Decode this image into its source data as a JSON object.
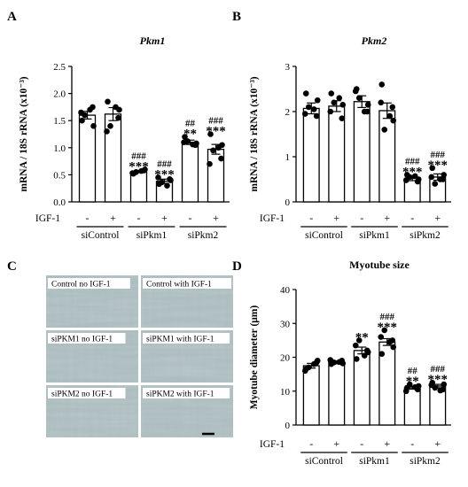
{
  "panels": {
    "A": "A",
    "B": "B",
    "C": "C",
    "D": "D"
  },
  "treatment": {
    "row_label": "IGF-1",
    "minus": "-",
    "plus": "+"
  },
  "micrographs": [
    {
      "label": "Control no IGF-1"
    },
    {
      "label": "Control with IGF-1"
    },
    {
      "label": "siPKM1 no IGF-1"
    },
    {
      "label": "siPKM1 with IGF-1"
    },
    {
      "label": "siPKM2 no IGF-1"
    },
    {
      "label": "siPKM2 with IGF-1"
    }
  ],
  "colors": {
    "bar_fill": "#ffffff",
    "bar_stroke": "#000000",
    "point": "#000000",
    "micrograph_tint": "#aebfc1"
  },
  "chart_data": [
    {
      "id": "pkm1",
      "type": "bar",
      "title": "Pkm1",
      "ylabel": "mRNA / 18S rRNA (x10⁻³)",
      "ylim": [
        0,
        2.5
      ],
      "yticks": [
        "0.0",
        "0.5",
        "1.0",
        "1.5",
        "2.0",
        "2.5"
      ],
      "groups": [
        "siControl",
        "siPkm1",
        "siPkm2"
      ],
      "categories": [
        "siControl -IGF-1",
        "siControl +IGF-1",
        "siPkm1 -IGF-1",
        "siPkm1 +IGF-1",
        "siPkm2 -IGF-1",
        "siPkm2 +IGF-1"
      ],
      "igf1": [
        "-",
        "+",
        "-",
        "+",
        "-",
        "+"
      ],
      "values": [
        1.6,
        1.62,
        0.56,
        0.38,
        1.1,
        0.97
      ],
      "errors": [
        0.07,
        0.12,
        0.02,
        0.04,
        0.04,
        0.09
      ],
      "points": [
        [
          1.5,
          1.75,
          1.6,
          1.4,
          1.65,
          1.7
        ],
        [
          1.85,
          1.55,
          1.4,
          1.7,
          1.3,
          1.75
        ],
        [
          0.52,
          0.58,
          0.55,
          0.6,
          0.53,
          0.57
        ],
        [
          0.33,
          0.42,
          0.36,
          0.4,
          0.45,
          0.3
        ],
        [
          1.2,
          1.05,
          1.12,
          1.08,
          1.1,
          1.06
        ],
        [
          1.25,
          0.8,
          0.95,
          1.05,
          0.7,
          1.0
        ]
      ],
      "stars": [
        "",
        "",
        "***",
        "***",
        "**",
        "***"
      ],
      "hashes": [
        "",
        "",
        "###",
        "###",
        "##",
        "###"
      ]
    },
    {
      "id": "pkm2",
      "type": "bar",
      "title": "Pkm2",
      "ylabel": "mRNA / 18S rRNA (x10⁻³)",
      "ylim": [
        0,
        3
      ],
      "yticks": [
        "0",
        "1",
        "2",
        "3"
      ],
      "groups": [
        "siControl",
        "siPkm1",
        "siPkm2"
      ],
      "categories": [
        "siControl -IGF-1",
        "siControl +IGF-1",
        "siPkm1 -IGF-1",
        "siPkm1 +IGF-1",
        "siPkm2 -IGF-1",
        "siPkm2 +IGF-1"
      ],
      "igf1": [
        "-",
        "+",
        "-",
        "+",
        "-",
        "+"
      ],
      "values": [
        2.07,
        2.12,
        2.22,
        2.02,
        0.52,
        0.55
      ],
      "errors": [
        0.12,
        0.12,
        0.13,
        0.17,
        0.05,
        0.07
      ],
      "points": [
        [
          2.4,
          1.9,
          2.1,
          2.25,
          1.95,
          2.05
        ],
        [
          2.4,
          1.85,
          2.2,
          2.15,
          2.0,
          2.3
        ],
        [
          2.5,
          2.0,
          2.3,
          2.15,
          2.45,
          2.0
        ],
        [
          2.6,
          2.1,
          1.6,
          1.8,
          2.2,
          1.9
        ],
        [
          0.6,
          0.45,
          0.55,
          0.5,
          0.48,
          0.57
        ],
        [
          0.75,
          0.5,
          0.4,
          0.6,
          0.55,
          0.5
        ]
      ],
      "stars": [
        "",
        "",
        "",
        "",
        "***",
        "***"
      ],
      "hashes": [
        "",
        "",
        "",
        "",
        "###",
        "###"
      ]
    },
    {
      "id": "myotube",
      "type": "bar",
      "title": "Myotube size",
      "ylabel": "Myotube diameter (μm)",
      "ylim": [
        0,
        40
      ],
      "yticks": [
        "0",
        "10",
        "20",
        "30",
        "40"
      ],
      "groups": [
        "siControl",
        "siPkm1",
        "siPkm2"
      ],
      "categories": [
        "siControl -IGF-1",
        "siControl +IGF-1",
        "siPkm1 -IGF-1",
        "siPkm1 +IGF-1",
        "siPkm2 -IGF-1",
        "siPkm2 +IGF-1"
      ],
      "igf1": [
        "-",
        "+",
        "-",
        "+",
        "-",
        "+"
      ],
      "values": [
        17.5,
        18.5,
        22.0,
        24.5,
        11.0,
        11.5
      ],
      "errors": [
        0.7,
        0.4,
        1.0,
        1.0,
        0.4,
        0.5
      ],
      "points": [
        [
          16.5,
          18.5,
          17.0,
          19.0,
          16.0,
          18.0
        ],
        [
          18.0,
          19.0,
          18.5,
          18.2,
          19.2,
          18.6
        ],
        [
          19.5,
          22.0,
          25.0,
          21.5,
          23.5,
          20.5
        ],
        [
          21.0,
          25.0,
          28.0,
          23.0,
          26.0,
          24.5
        ],
        [
          11.0,
          10.5,
          12.0,
          11.5,
          10.0,
          11.2
        ],
        [
          12.5,
          10.5,
          11.0,
          12.0,
          11.8,
          10.2
        ]
      ],
      "stars": [
        "",
        "",
        "**",
        "***",
        "**",
        "***"
      ],
      "hashes": [
        "",
        "",
        "",
        "###",
        "##",
        "###"
      ]
    }
  ]
}
